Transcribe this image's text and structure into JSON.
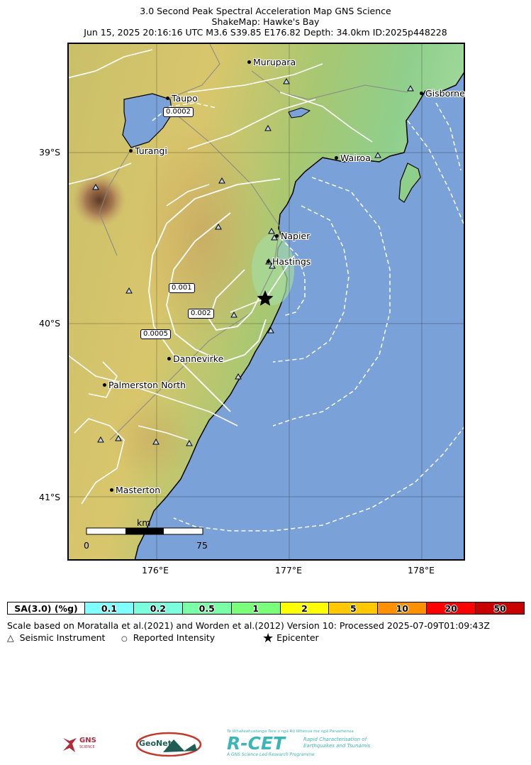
{
  "title": {
    "line1": "3.0 Second Peak Spectral Acceleration Map GNS Science",
    "line2": "ShakeMap: Hawke's Bay",
    "line3": "Jun 15, 2025 20:16:16 UTC M3.6 S39.85 E176.82 Depth: 34.0km ID:2025p448228"
  },
  "axes": {
    "lat_labels": [
      "39°S",
      "40°S",
      "41°S"
    ],
    "lon_labels": [
      "176°E",
      "177°E",
      "178°E"
    ]
  },
  "cities": [
    {
      "name": "Murupara"
    },
    {
      "name": "Taupo"
    },
    {
      "name": "Gisborne"
    },
    {
      "name": "Turangi"
    },
    {
      "name": "Wairoa"
    },
    {
      "name": "Napier"
    },
    {
      "name": "Hastings"
    },
    {
      "name": "Dannevirke"
    },
    {
      "name": "Palmerston North"
    },
    {
      "name": "Masterton"
    }
  ],
  "contour_labels": [
    "0.0002",
    "0.001",
    "0.002",
    "0.0005"
  ],
  "scalebar": {
    "unit": "km",
    "start": "0",
    "end": "75"
  },
  "epicenter": {
    "lat": -39.85,
    "lon": 176.82
  },
  "legend": {
    "header": "SA(3.0) (%g)",
    "bins": [
      {
        "label": "0.1",
        "color": "#80ffff"
      },
      {
        "label": "0.2",
        "color": "#7affdf"
      },
      {
        "label": "0.5",
        "color": "#7affa6"
      },
      {
        "label": "1",
        "color": "#7aff7a"
      },
      {
        "label": "2",
        "color": "#ffff00"
      },
      {
        "label": "5",
        "color": "#ffc800"
      },
      {
        "label": "10",
        "color": "#ff9100"
      },
      {
        "label": "20",
        "color": "#ff0000"
      },
      {
        "label": "50",
        "color": "#c80000"
      }
    ]
  },
  "footer": {
    "scale_note": "Scale based on Moratalla et al.(2021) and Worden et al.(2012) Version 10: Processed 2025-07-09T01:09:43Z",
    "seismic_instrument": "Seismic Instrument",
    "reported_intensity": "Reported Intensity",
    "epicenter": "Epicenter"
  },
  "logos": {
    "gns": "GNS",
    "gns_sub": "SCIENCE",
    "geonet": "GeoNet",
    "rcet": "R-CET",
    "rcet_tagline": "Te Whakaahuatanga Tere o ngā Rū Whenua me ngā Parawhenua",
    "rcet_sub1": "Rapid Characterisation of",
    "rcet_sub2": "Earthquakes and Tsunamis",
    "rcet_sub3": "A GNS Science Led Research Programme"
  },
  "colors": {
    "sea": "#7aa1d8",
    "land_low": "#9fd79a",
    "land_mid": "#d9d27a",
    "land_high": "#b78a55"
  }
}
